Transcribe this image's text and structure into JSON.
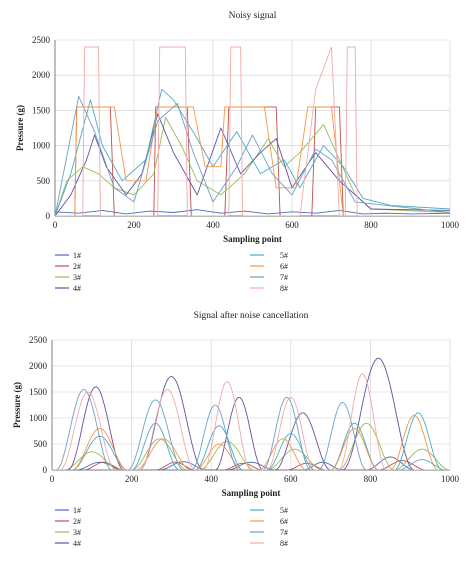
{
  "chart_data": [
    {
      "type": "line",
      "title": "Noisy signal",
      "xlabel": "Sampling point",
      "ylabel": "Pressure (g)",
      "xlim": [
        0,
        1000
      ],
      "ylim": [
        0,
        2500
      ],
      "xticks": [
        0,
        200,
        400,
        600,
        800,
        1000
      ],
      "yticks": [
        0,
        500,
        1000,
        1500,
        2000,
        2500
      ],
      "grid": true,
      "legend": "below",
      "series": [
        {
          "name": "1#",
          "color": "#4a6fb5",
          "points": [
            [
              0,
              60
            ],
            [
              60,
              40
            ],
            [
              120,
              80
            ],
            [
              180,
              30
            ],
            [
              240,
              70
            ],
            [
              300,
              50
            ],
            [
              360,
              90
            ],
            [
              420,
              40
            ],
            [
              480,
              70
            ],
            [
              540,
              30
            ],
            [
              600,
              60
            ],
            [
              660,
              40
            ],
            [
              720,
              80
            ],
            [
              780,
              30
            ],
            [
              840,
              40
            ],
            [
              900,
              30
            ],
            [
              1000,
              40
            ]
          ]
        },
        {
          "name": "2#",
          "color": "#c0504d",
          "points": [
            [
              0,
              0
            ],
            [
              50,
              0
            ],
            [
              55,
              1550
            ],
            [
              140,
              1550
            ],
            [
              150,
              0
            ],
            [
              250,
              0
            ],
            [
              255,
              1550
            ],
            [
              335,
              1550
            ],
            [
              345,
              0
            ],
            [
              430,
              0
            ],
            [
              440,
              1550
            ],
            [
              560,
              1550
            ],
            [
              570,
              0
            ],
            [
              650,
              0
            ],
            [
              660,
              1550
            ],
            [
              720,
              1550
            ],
            [
              730,
              0
            ],
            [
              1000,
              0
            ]
          ]
        },
        {
          "name": "3#",
          "color": "#9bbb59",
          "points": [
            [
              0,
              0
            ],
            [
              30,
              500
            ],
            [
              70,
              700
            ],
            [
              110,
              600
            ],
            [
              150,
              400
            ],
            [
              200,
              300
            ],
            [
              250,
              600
            ],
            [
              280,
              1400
            ],
            [
              320,
              1000
            ],
            [
              360,
              500
            ],
            [
              420,
              300
            ],
            [
              480,
              600
            ],
            [
              540,
              1100
            ],
            [
              580,
              700
            ],
            [
              620,
              900
            ],
            [
              680,
              1300
            ],
            [
              720,
              800
            ],
            [
              760,
              300
            ],
            [
              800,
              100
            ],
            [
              1000,
              50
            ]
          ]
        },
        {
          "name": "4#",
          "color": "#6a4fa0",
          "points": [
            [
              0,
              0
            ],
            [
              40,
              300
            ],
            [
              80,
              800
            ],
            [
              100,
              1150
            ],
            [
              130,
              700
            ],
            [
              180,
              300
            ],
            [
              220,
              600
            ],
            [
              260,
              1450
            ],
            [
              300,
              900
            ],
            [
              360,
              300
            ],
            [
              420,
              1250
            ],
            [
              470,
              600
            ],
            [
              520,
              900
            ],
            [
              560,
              1100
            ],
            [
              600,
              400
            ],
            [
              660,
              900
            ],
            [
              720,
              500
            ],
            [
              800,
              100
            ],
            [
              1000,
              80
            ]
          ]
        },
        {
          "name": "5#",
          "color": "#4bacc6",
          "points": [
            [
              0,
              0
            ],
            [
              40,
              600
            ],
            [
              90,
              1650
            ],
            [
              120,
              1000
            ],
            [
              170,
              500
            ],
            [
              230,
              800
            ],
            [
              270,
              1800
            ],
            [
              300,
              1650
            ],
            [
              360,
              1100
            ],
            [
              400,
              700
            ],
            [
              460,
              1200
            ],
            [
              520,
              600
            ],
            [
              580,
              800
            ],
            [
              620,
              400
            ],
            [
              680,
              1000
            ],
            [
              730,
              700
            ],
            [
              780,
              250
            ],
            [
              850,
              150
            ],
            [
              1000,
              100
            ]
          ]
        },
        {
          "name": "6#",
          "color": "#f79646",
          "points": [
            [
              0,
              0
            ],
            [
              50,
              0
            ],
            [
              55,
              1550
            ],
            [
              150,
              1550
            ],
            [
              180,
              500
            ],
            [
              230,
              500
            ],
            [
              260,
              1550
            ],
            [
              350,
              1550
            ],
            [
              380,
              700
            ],
            [
              420,
              700
            ],
            [
              430,
              1550
            ],
            [
              530,
              1550
            ],
            [
              560,
              400
            ],
            [
              610,
              400
            ],
            [
              640,
              1550
            ],
            [
              700,
              1550
            ],
            [
              730,
              0
            ],
            [
              1000,
              0
            ]
          ]
        },
        {
          "name": "7#",
          "color": "#6aa3c9",
          "points": [
            [
              0,
              0
            ],
            [
              60,
              1700
            ],
            [
              100,
              1200
            ],
            [
              150,
              400
            ],
            [
              200,
              200
            ],
            [
              260,
              1350
            ],
            [
              310,
              1600
            ],
            [
              350,
              900
            ],
            [
              400,
              200
            ],
            [
              460,
              700
            ],
            [
              500,
              1150
            ],
            [
              550,
              600
            ],
            [
              600,
              300
            ],
            [
              660,
              950
            ],
            [
              700,
              800
            ],
            [
              760,
              200
            ],
            [
              1000,
              50
            ]
          ]
        },
        {
          "name": "8#",
          "color": "#f2a9a9",
          "points": [
            [
              0,
              0
            ],
            [
              70,
              0
            ],
            [
              75,
              2400
            ],
            [
              110,
              2400
            ],
            [
              115,
              0
            ],
            [
              260,
              0
            ],
            [
              265,
              2400
            ],
            [
              330,
              2400
            ],
            [
              335,
              0
            ],
            [
              440,
              0
            ],
            [
              445,
              2400
            ],
            [
              470,
              2400
            ],
            [
              475,
              0
            ],
            [
              620,
              0
            ],
            [
              660,
              1800
            ],
            [
              700,
              2400
            ],
            [
              720,
              0
            ],
            [
              735,
              0
            ],
            [
              740,
              2400
            ],
            [
              760,
              2400
            ],
            [
              765,
              0
            ],
            [
              1000,
              0
            ]
          ]
        }
      ]
    },
    {
      "type": "line",
      "title": "Signal after noise cancellation",
      "xlabel": "Sampling point",
      "ylabel": "Pressure (g)",
      "xlim": [
        0,
        1000
      ],
      "ylim": [
        0,
        2500
      ],
      "xticks": [
        0,
        200,
        400,
        600,
        800,
        1000
      ],
      "yticks": [
        0,
        500,
        1000,
        1500,
        2000,
        2500
      ],
      "grid": true,
      "legend": "below",
      "series": [
        {
          "name": "1#",
          "color": "#4a6fb5",
          "bumps": [
            [
              120,
              60,
              150
            ],
            [
              330,
              60,
              160
            ],
            [
              500,
              60,
              150
            ],
            [
              680,
              50,
              150
            ],
            [
              850,
              60,
              250
            ]
          ]
        },
        {
          "name": "2#",
          "color": "#c0504d",
          "bumps": [
            [
              130,
              50,
              150
            ],
            [
              310,
              50,
              150
            ],
            [
              480,
              50,
              130
            ],
            [
              640,
              50,
              130
            ],
            [
              880,
              60,
              180
            ]
          ]
        },
        {
          "name": "3#",
          "color": "#9bbb59",
          "bumps": [
            [
              100,
              70,
              350
            ],
            [
              270,
              70,
              600
            ],
            [
              440,
              70,
              550
            ],
            [
              610,
              70,
              400
            ],
            [
              790,
              70,
              900
            ],
            [
              930,
              70,
              400
            ]
          ]
        },
        {
          "name": "4#",
          "color": "#6a4fa0",
          "bumps": [
            [
              110,
              70,
              1600
            ],
            [
              300,
              80,
              1800
            ],
            [
              470,
              60,
              1400
            ],
            [
              630,
              70,
              1100
            ],
            [
              820,
              90,
              2150
            ]
          ]
        },
        {
          "name": "5#",
          "color": "#4bacc6",
          "bumps": [
            [
              120,
              70,
              650
            ],
            [
              260,
              60,
              900
            ],
            [
              420,
              60,
              850
            ],
            [
              600,
              60,
              700
            ],
            [
              760,
              60,
              900
            ],
            [
              920,
              60,
              1100
            ]
          ]
        },
        {
          "name": "6#",
          "color": "#f79646",
          "bumps": [
            [
              120,
              70,
              800
            ],
            [
              280,
              70,
              600
            ],
            [
              420,
              60,
              500
            ],
            [
              580,
              60,
              600
            ],
            [
              760,
              60,
              800
            ],
            [
              910,
              60,
              1050
            ]
          ]
        },
        {
          "name": "7#",
          "color": "#6aa3c9",
          "bumps": [
            [
              80,
              70,
              1550
            ],
            [
              260,
              70,
              1350
            ],
            [
              410,
              60,
              1250
            ],
            [
              590,
              60,
              1400
            ],
            [
              730,
              60,
              1300
            ],
            [
              930,
              60,
              200
            ]
          ]
        },
        {
          "name": "8#",
          "color": "#f2a9a9",
          "bumps": [
            [
              90,
              70,
              1500
            ],
            [
              290,
              70,
              1550
            ],
            [
              440,
              60,
              1700
            ],
            [
              600,
              60,
              1400
            ],
            [
              780,
              60,
              1850
            ]
          ]
        }
      ]
    }
  ]
}
